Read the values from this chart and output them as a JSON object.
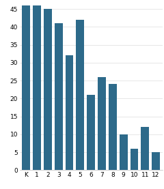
{
  "categories": [
    "K",
    "1",
    "2",
    "3",
    "4",
    "5",
    "6",
    "7",
    "8",
    "9",
    "10",
    "11",
    "12"
  ],
  "values": [
    46,
    46,
    45,
    41,
    32,
    42,
    21,
    26,
    24,
    10,
    6,
    12,
    5
  ],
  "bar_color": "#2d6a8a",
  "ylim": [
    0,
    47
  ],
  "yticks": [
    0,
    5,
    10,
    15,
    20,
    25,
    30,
    35,
    40,
    45
  ],
  "background_color": "#ffffff",
  "tick_fontsize": 6.5,
  "bar_width": 0.75
}
